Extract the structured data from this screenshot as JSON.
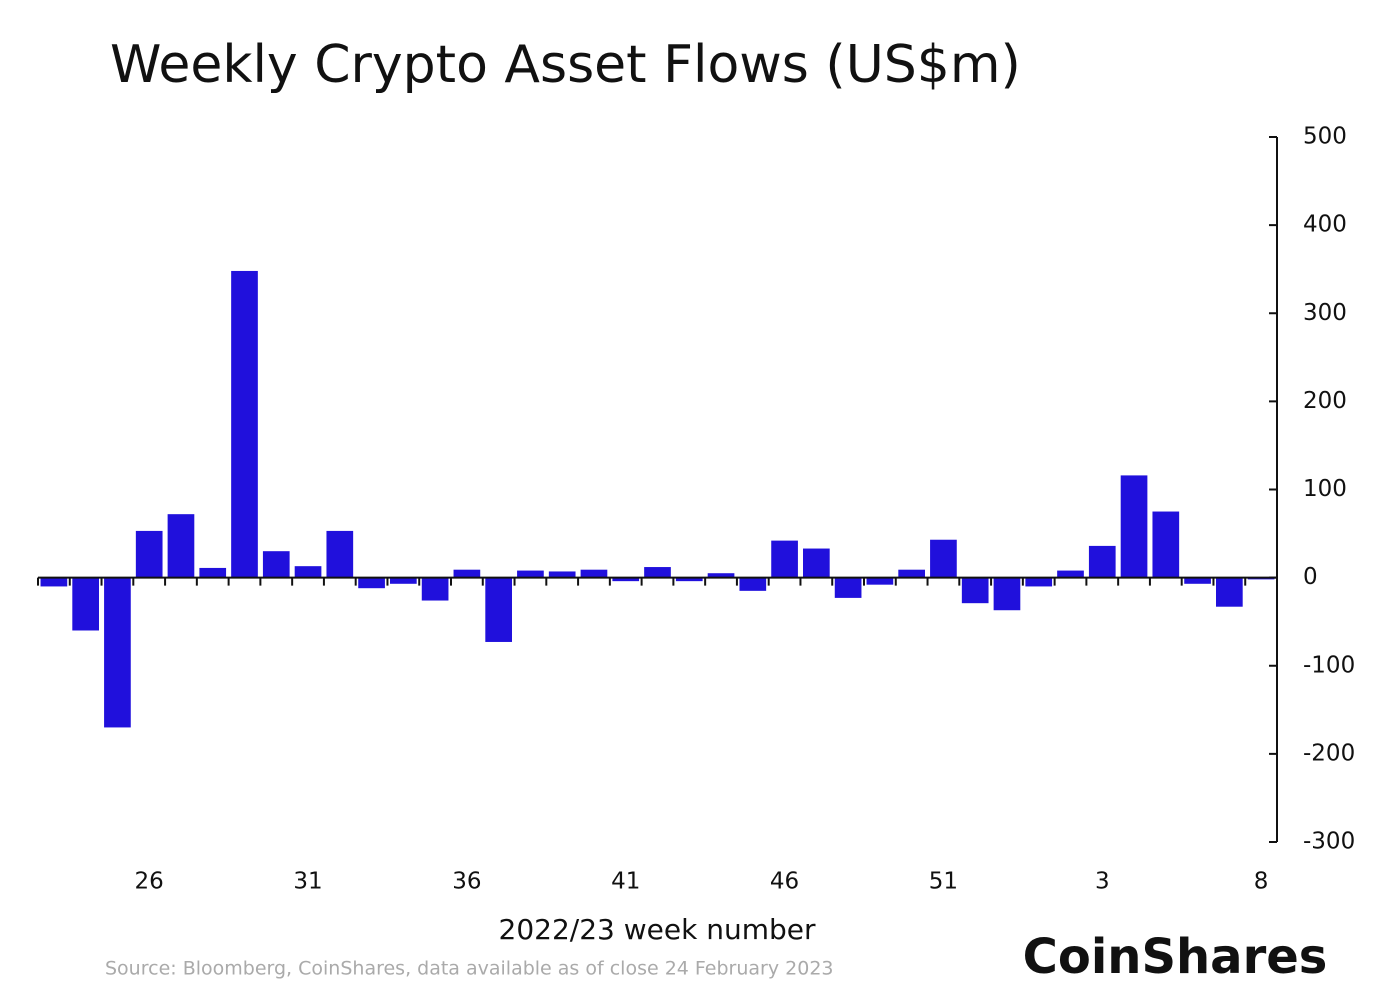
{
  "chart_data": {
    "type": "bar",
    "title": "Weekly Crypto Asset Flows (US$m)",
    "x_label": "2022/23 week number",
    "source": "Source: Bloomberg, CoinShares, data available as of close 24 February 2023",
    "logo": "CoinShares",
    "categories": [
      null,
      null,
      null,
      "26",
      null,
      null,
      null,
      null,
      "31",
      null,
      null,
      null,
      null,
      "36",
      null,
      null,
      null,
      null,
      "41",
      null,
      null,
      null,
      null,
      "46",
      null,
      null,
      null,
      null,
      "51",
      null,
      null,
      null,
      null,
      "3",
      null,
      null,
      null,
      null,
      "8"
    ],
    "values": [
      -10,
      -60,
      -170,
      53,
      72,
      11,
      348,
      30,
      13,
      53,
      -12,
      -7,
      -26,
      9,
      -73,
      8,
      7,
      9,
      -4,
      12,
      -4,
      5,
      -15,
      42,
      33,
      -23,
      -8,
      9,
      43,
      -29,
      -37,
      -10,
      8,
      36,
      116,
      75,
      -7,
      -33,
      -2
    ],
    "color": "#2010dc",
    "ylim": [
      -300,
      500
    ],
    "yticks": [
      -300,
      -200,
      -100,
      0,
      100,
      200,
      300,
      400,
      500
    ],
    "grid": false
  }
}
